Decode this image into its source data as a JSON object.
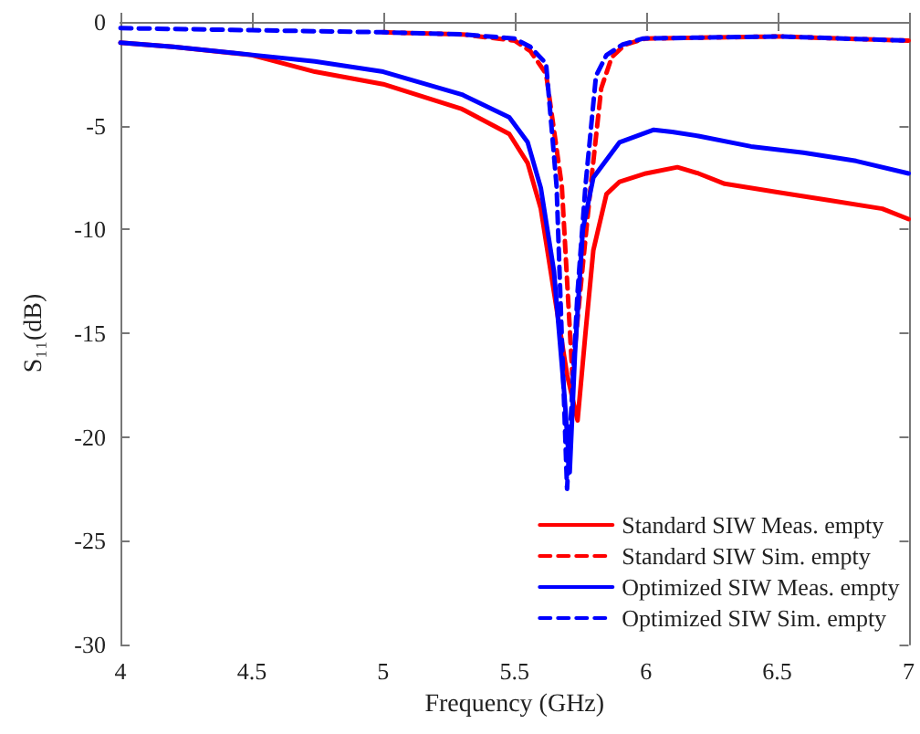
{
  "chart_data": {
    "type": "line",
    "xlabel": "Frequency (GHz)",
    "ylabel": "S₁₁(dB)",
    "xlim": [
      4,
      7
    ],
    "xticks": [
      4,
      4.5,
      5,
      5.5,
      6,
      6.5,
      7
    ],
    "ylim": [
      -30,
      0
    ],
    "yticks": [
      -30,
      -25,
      -20,
      -15,
      -10,
      -5,
      0
    ],
    "grid": false,
    "legend": "bottom right",
    "marker": "none",
    "series": [
      {
        "name": "Standard SIW Meas. empty",
        "color": "#ff0000",
        "line_style": "solid",
        "x": [
          4,
          4.2,
          4.5,
          4.74,
          5,
          5.3,
          5.48,
          5.55,
          5.6,
          5.65,
          5.7,
          5.74,
          5.77,
          5.8,
          5.85,
          5.9,
          6.0,
          6.12,
          6.2,
          6.3,
          6.5,
          6.7,
          6.9,
          7
        ],
        "values": [
          -1.0,
          -1.2,
          -1.6,
          -2.4,
          -3.0,
          -4.2,
          -5.4,
          -6.8,
          -9,
          -13,
          -17,
          -19.2,
          -15,
          -11,
          -8.3,
          -7.7,
          -7.3,
          -7.0,
          -7.3,
          -7.8,
          -8.2,
          -8.6,
          -9.0,
          -9.5
        ]
      },
      {
        "name": "Standard SIW Sim. empty",
        "color": "#ff0000",
        "line_style": "dashed",
        "x": [
          5,
          5.3,
          5.5,
          5.56,
          5.62,
          5.68,
          5.72,
          5.75,
          5.79,
          5.83,
          5.87,
          5.92,
          6.0,
          6.5,
          7
        ],
        "values": [
          -0.5,
          -0.6,
          -0.9,
          -1.4,
          -2.5,
          -7.9,
          -17,
          -13,
          -7.9,
          -3.2,
          -1.7,
          -1.1,
          -0.8,
          -0.7,
          -0.9
        ]
      },
      {
        "name": "Optimized SIW Meas. empty",
        "color": "#0000ff",
        "line_style": "solid",
        "x": [
          4,
          4.2,
          4.51,
          4.74,
          5,
          5.3,
          5.48,
          5.55,
          5.6,
          5.65,
          5.69,
          5.71,
          5.73,
          5.76,
          5.8,
          5.9,
          6.03,
          6.1,
          6.2,
          6.4,
          6.6,
          6.8,
          7
        ],
        "values": [
          -1.0,
          -1.2,
          -1.6,
          -1.9,
          -2.4,
          -3.5,
          -4.6,
          -5.8,
          -8,
          -12,
          -18,
          -21.7,
          -16,
          -10,
          -7.5,
          -5.8,
          -5.2,
          -5.3,
          -5.5,
          -6.0,
          -6.3,
          -6.7,
          -7.3
        ]
      },
      {
        "name": "Optimized SIW Sim. empty",
        "color": "#0000ff",
        "line_style": "dashed",
        "x": [
          4,
          4.5,
          5,
          5.3,
          5.5,
          5.56,
          5.62,
          5.66,
          5.7,
          5.74,
          5.77,
          5.81,
          5.85,
          5.91,
          5.99,
          6.5,
          7
        ],
        "values": [
          -0.3,
          -0.4,
          -0.5,
          -0.6,
          -0.8,
          -1.2,
          -2.0,
          -7.9,
          -22.5,
          -13,
          -7.9,
          -2.6,
          -1.6,
          -1.1,
          -0.8,
          -0.7,
          -0.9
        ]
      }
    ]
  }
}
